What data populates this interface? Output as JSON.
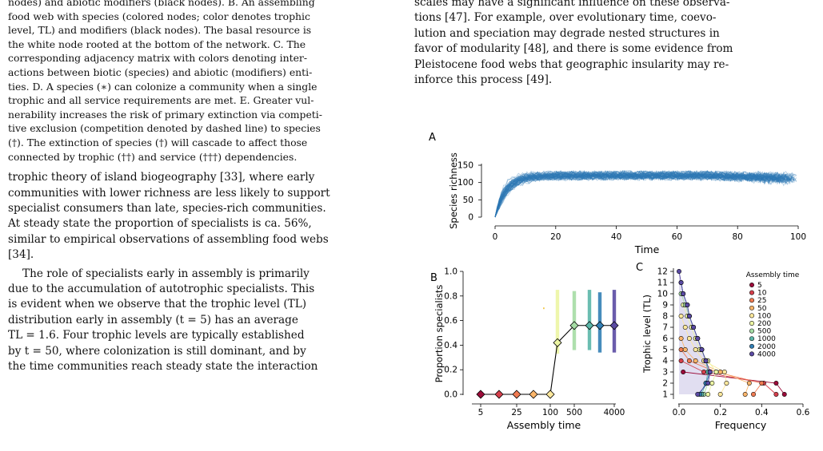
{
  "left_column": {
    "caption_lines": [
      "nodes) and abiotic modifiers (black nodes). B. An assembling",
      "food web with species (colored nodes; color denotes trophic",
      "level, TL) and modifiers (black nodes). The basal resource is",
      "the white node rooted at the bottom of the network. C. The",
      "corresponding adjacency matrix with colors denoting inter-",
      "actions between biotic (species) and abiotic (modifiers) enti-",
      "ties. D. A species (∗) can colonize a community when a single",
      "trophic and all service requirements are met. E. Greater vul-",
      "nerability increases the risk of primary extinction via competi-",
      "tive exclusion (competition denoted by dashed line) to species",
      "(†). The extinction of species (†) will cascade to affect those",
      "connected by trophic (††) and service (†††) dependencies."
    ],
    "para1_lines": [
      "trophic theory of island biogeography [33], where early",
      "communities with lower richness are less likely to support",
      "specialist consumers than late, species-rich communities.",
      "At steady state the proportion of specialists is ca. 56%,",
      "similar to empirical observations of assembling food webs",
      "[34]."
    ],
    "para2_lines": [
      "The role of specialists early in assembly is primarily",
      "due to the accumulation of autotrophic specialists. This",
      "is evident when we observe that the trophic level (TL)",
      "distribution early in assembly (t = 5) has an average",
      "TL = 1.6. Four trophic levels are typically established",
      "by t = 50, where colonization is still dominant, and by",
      "the time communities reach steady state the interaction"
    ]
  },
  "right_column": {
    "text_lines": [
      "scales may have a significant influence on these observa-",
      "tions [47]. For example, over evolutionary time, coevo-",
      "lution and speciation may degrade nested structures in",
      "favor of modularity [48], and there is some evidence from",
      "Pleistocene food webs that geographic insularity may re-",
      "inforce this process [49]."
    ]
  },
  "panel_labels": {
    "a": "A",
    "b": "B",
    "c": "C"
  },
  "chart_data": [
    {
      "type": "line",
      "panel": "A",
      "xlabel": "Time",
      "ylabel": "Species richness",
      "xlim": [
        0,
        100
      ],
      "ylim": [
        0,
        150
      ],
      "xticks": [
        0,
        20,
        40,
        60,
        80,
        100
      ],
      "yticks": [
        0,
        50,
        100,
        150
      ],
      "color": "#2f77b5",
      "n_series": 60,
      "x_end": 100,
      "plateau_mean": 120,
      "plateau_start": 12,
      "initial_value": 0
    },
    {
      "type": "scatter",
      "panel": "B",
      "xlabel": "Assembly time",
      "ylabel": "Proportion specialists",
      "ylim": [
        0,
        1.0
      ],
      "yticks": [
        "0.0",
        "0.2",
        "0.4",
        "0.6",
        "0.8",
        "1.0"
      ],
      "xticks": [
        "5",
        "25",
        "100",
        "500",
        "4000"
      ],
      "categories": [
        "5",
        "10",
        "25",
        "50",
        "100",
        "200",
        "500",
        "1000",
        "2000",
        "4000"
      ],
      "values": [
        0.0,
        0.0,
        0.0,
        0.0,
        0.0,
        0.42,
        0.56,
        0.56,
        0.56,
        0.56
      ],
      "range_low": [
        0.0,
        0.0,
        0.0,
        0.0,
        0.0,
        0.33,
        0.36,
        0.36,
        0.34,
        0.34
      ],
      "range_high": [
        0.0,
        0.0,
        0.0,
        0.0,
        0.0,
        0.85,
        0.84,
        0.85,
        0.83,
        0.85
      ],
      "colors": [
        "#9b0c3a",
        "#d53f4b",
        "#f07b52",
        "#fbb56a",
        "#fde89c",
        "#ecf5a3",
        "#a5dca4",
        "#5bb6a8",
        "#337fb5",
        "#5a4aa3"
      ]
    },
    {
      "type": "line",
      "panel": "C",
      "xlabel": "Frequency",
      "ylabel": "Trophic level (TL)",
      "xlim": [
        0,
        0.6
      ],
      "xticks": [
        "0.0",
        "0.2",
        "0.4",
        "0.6"
      ],
      "yticks": [
        1,
        2,
        3,
        4,
        5,
        6,
        7,
        8,
        9,
        10,
        11,
        12
      ],
      "legend_title": "Assembly time",
      "legend_position": "top-right",
      "series": [
        {
          "name": "5",
          "color": "#9b0c3a",
          "trophic_levels": [
            1,
            2,
            3
          ],
          "frequency": [
            0.51,
            0.47,
            0.02
          ]
        },
        {
          "name": "10",
          "color": "#d53f4b",
          "trophic_levels": [
            1,
            2,
            3,
            4
          ],
          "frequency": [
            0.47,
            0.41,
            0.12,
            0.01
          ]
        },
        {
          "name": "25",
          "color": "#f07b52",
          "trophic_levels": [
            1,
            2,
            3,
            4,
            5
          ],
          "frequency": [
            0.36,
            0.4,
            0.18,
            0.05,
            0.01
          ]
        },
        {
          "name": "50",
          "color": "#fbb56a",
          "trophic_levels": [
            1,
            2,
            3,
            4,
            5,
            6
          ],
          "frequency": [
            0.32,
            0.34,
            0.2,
            0.08,
            0.03,
            0.01
          ]
        },
        {
          "name": "100",
          "color": "#fde89c",
          "trophic_levels": [
            1,
            2,
            3,
            4,
            5,
            6,
            7,
            8
          ],
          "frequency": [
            0.2,
            0.23,
            0.22,
            0.12,
            0.08,
            0.05,
            0.03,
            0.01
          ]
        },
        {
          "name": "200",
          "color": "#ecf5a3",
          "trophic_levels": [
            1,
            2,
            3,
            4,
            5,
            6,
            7,
            8,
            9
          ],
          "frequency": [
            0.14,
            0.16,
            0.18,
            0.14,
            0.1,
            0.08,
            0.06,
            0.04,
            0.02
          ]
        },
        {
          "name": "500",
          "color": "#a5dca4",
          "trophic_levels": [
            1,
            2,
            3,
            4,
            5,
            6,
            7,
            8,
            9,
            10
          ],
          "frequency": [
            0.12,
            0.14,
            0.15,
            0.13,
            0.11,
            0.09,
            0.07,
            0.05,
            0.03,
            0.01
          ]
        },
        {
          "name": "1000",
          "color": "#5bb6a8",
          "trophic_levels": [
            1,
            2,
            3,
            4,
            5,
            6,
            7,
            8,
            9,
            10,
            11
          ],
          "frequency": [
            0.11,
            0.13,
            0.14,
            0.13,
            0.11,
            0.09,
            0.07,
            0.05,
            0.04,
            0.02,
            0.01
          ]
        },
        {
          "name": "2000",
          "color": "#337fb5",
          "trophic_levels": [
            1,
            2,
            3,
            4,
            5,
            6,
            7,
            8,
            9,
            10,
            11
          ],
          "frequency": [
            0.1,
            0.13,
            0.15,
            0.13,
            0.11,
            0.09,
            0.07,
            0.05,
            0.04,
            0.02,
            0.01
          ]
        },
        {
          "name": "4000",
          "color": "#5a4aa3",
          "trophic_levels": [
            1,
            2,
            3,
            4,
            5,
            6,
            7,
            8,
            9,
            10,
            11,
            12
          ],
          "frequency": [
            0.09,
            0.14,
            0.15,
            0.13,
            0.11,
            0.09,
            0.07,
            0.05,
            0.04,
            0.02,
            0.01,
            0.0
          ]
        }
      ]
    }
  ]
}
